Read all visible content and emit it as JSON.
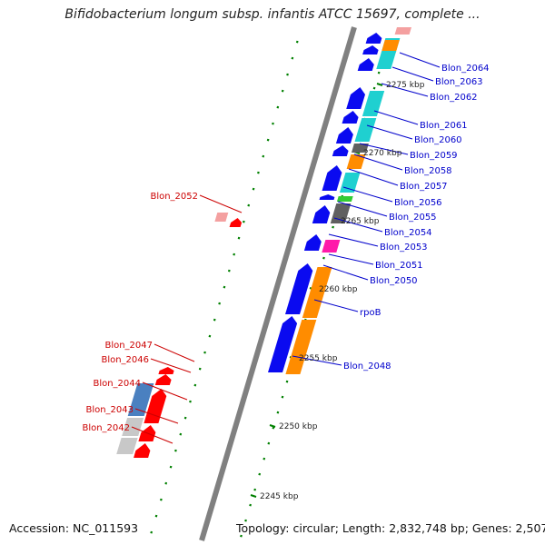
{
  "title": "Bifidobacterium longum subsp. infantis ATCC 15697, complete ...",
  "footer": {
    "accession": "Accession: NC_011593",
    "topology": "Topology: circular; Length: 2,832,748 bp; Genes: 2,507"
  },
  "colors": {
    "backbone": "#808080",
    "plus_strand_gene": "#0a0af0",
    "cds_orange": "#ff8c00",
    "cds_cyan": "#1fd0d0",
    "cds_gray": "#606060",
    "cds_pink": "#ff1aaa",
    "cds_green": "#33cc33",
    "cds_salmon": "#f4a0a0",
    "cds_steelblue": "#4a80c0",
    "cds_lightgray": "#c8c8c8",
    "minus_strand_gene": "#ff0000",
    "label_blue": "#0000cc",
    "label_red": "#cc0000",
    "tick_green": "#008000"
  },
  "scale_labels": [
    "2275 kbp",
    "2270 kbp",
    "2265 kbp",
    "2260 kbp",
    "2255 kbp",
    "2250 kbp",
    "2245 kbp"
  ],
  "gene_labels_right": [
    "Blon_2064",
    "Blon_2063",
    "Blon_2062",
    "Blon_2061",
    "Blon_2060",
    "Blon_2059",
    "Blon_2058",
    "Blon_2057",
    "Blon_2056",
    "Blon_2055",
    "Blon_2054",
    "Blon_2053",
    "Blon_2051",
    "Blon_2050",
    "rpoB",
    "Blon_2048"
  ],
  "gene_labels_left": [
    "Blon_2052",
    "Blon_2047",
    "Blon_2046",
    "Blon_2044",
    "Blon_2043",
    "Blon_2042"
  ]
}
